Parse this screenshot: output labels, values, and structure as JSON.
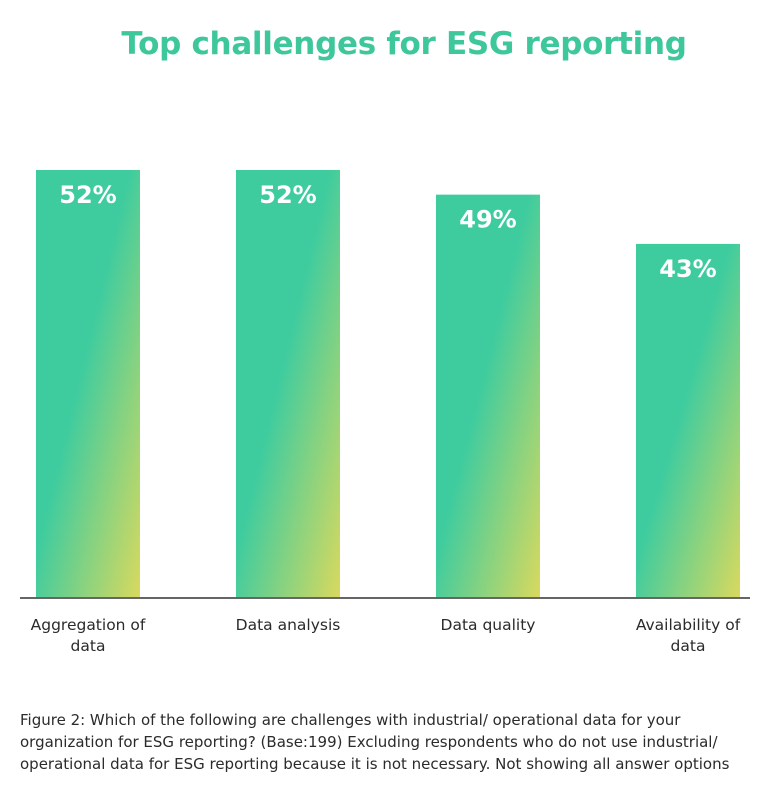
{
  "colors": {
    "title": "#3ec79a",
    "bar_top": "#3ecc9f",
    "bar_bottom": "#d9d95e",
    "axis": "#333333",
    "text": "#2b2b2b"
  },
  "chart_data": {
    "type": "bar",
    "title": "Top challenges for ESG reporting",
    "categories": [
      [
        "Aggregation of",
        "data"
      ],
      [
        "Data analysis"
      ],
      [
        "Data quality"
      ],
      [
        "Availability of",
        "data"
      ]
    ],
    "values": [
      52,
      52,
      49,
      43
    ],
    "value_labels": [
      "52%",
      "52%",
      "49%",
      "43%"
    ],
    "ylim": [
      0,
      52
    ],
    "grid": false,
    "legend": "none"
  },
  "caption": "Figure 2: Which of the following are challenges with industrial/ operational data for your organization for ESG reporting? (Base:199) Excluding respondents who do not use industrial/ operational data for ESG reporting because it is not necessary. Not showing all answer options"
}
